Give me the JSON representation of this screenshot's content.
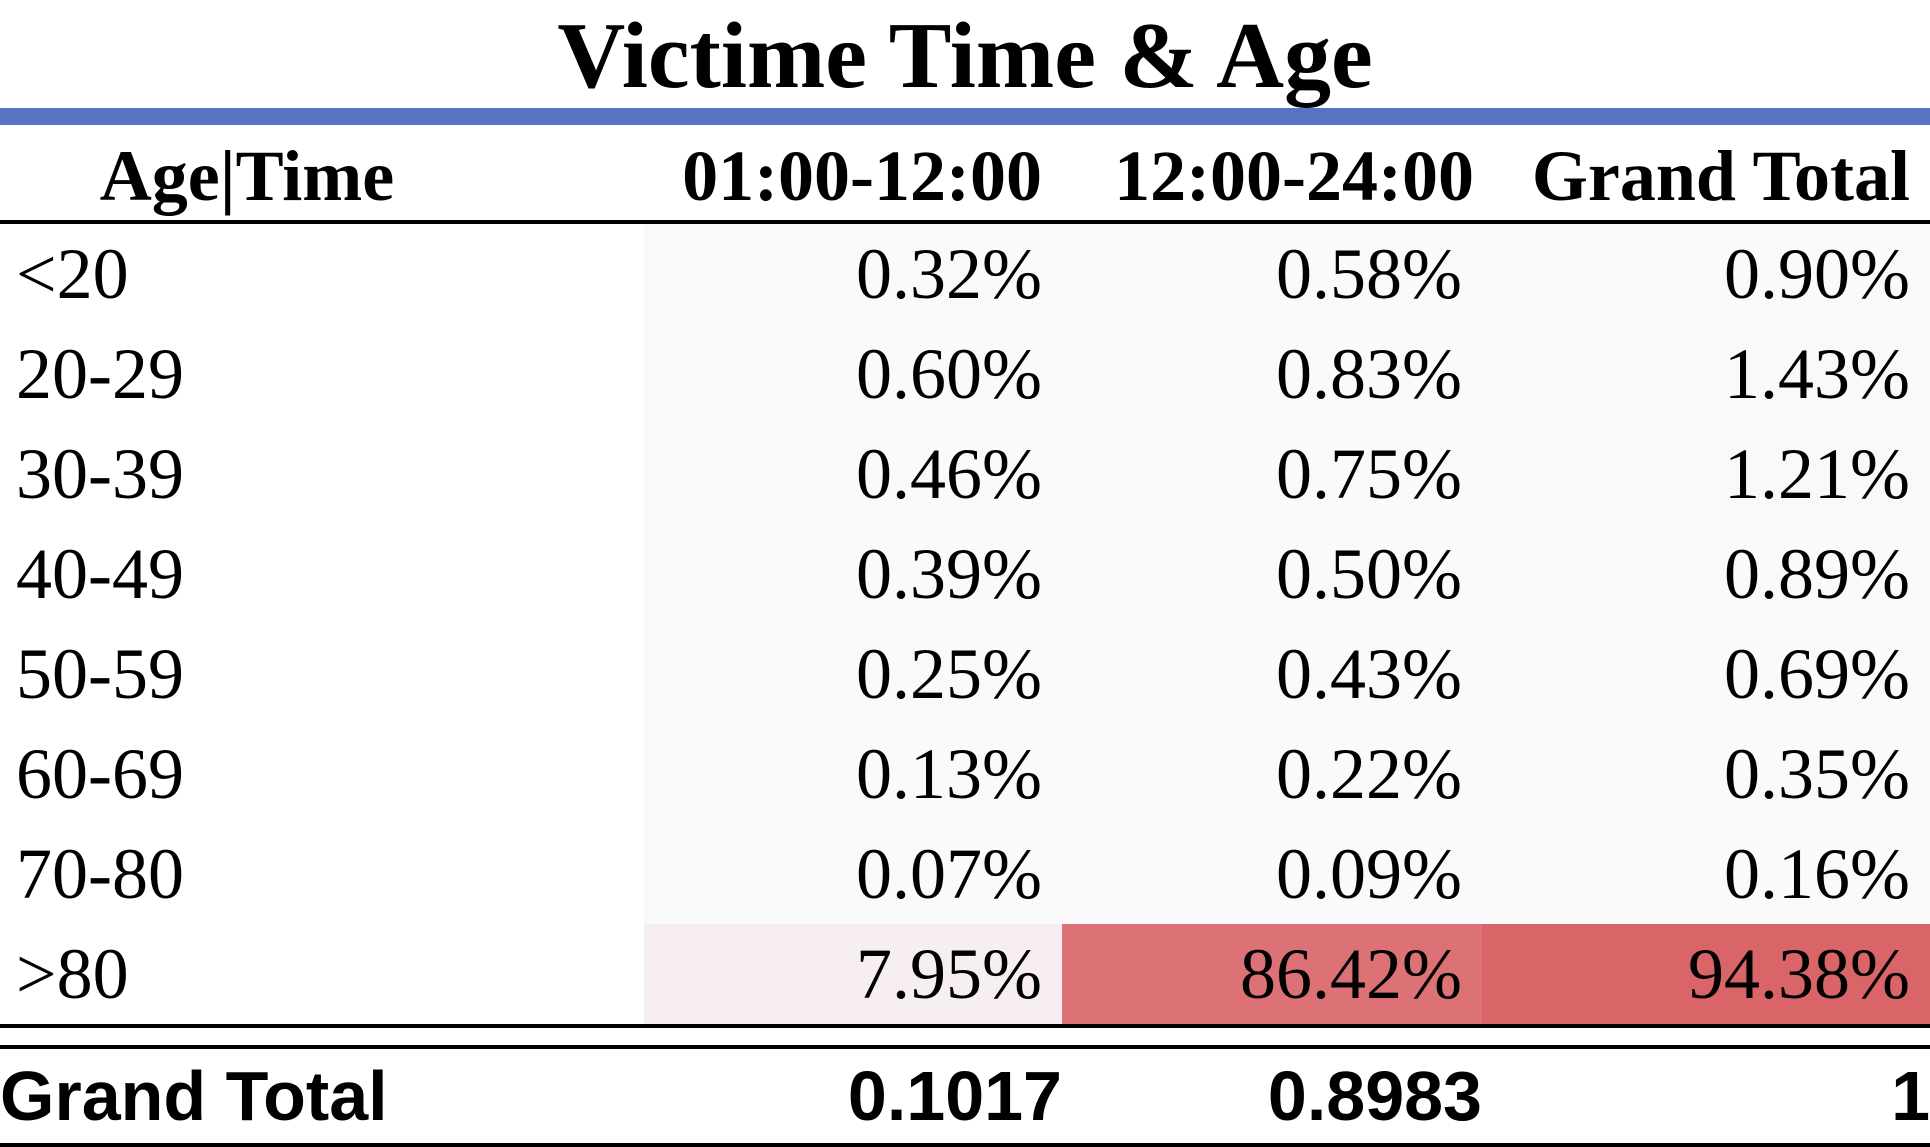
{
  "title": "Victime Time & Age",
  "chart_data": {
    "type": "heatmap",
    "title": "Victime Time & Age",
    "corner_label": "Age|Time",
    "columns": [
      "01:00-12:00",
      "12:00-24:00",
      "Grand Total"
    ],
    "rows": [
      {
        "label": "<20",
        "values": [
          "0.32%",
          "0.58%",
          "0.90%"
        ],
        "numeric": [
          0.32,
          0.58,
          0.9
        ]
      },
      {
        "label": "20-29",
        "values": [
          "0.60%",
          "0.83%",
          "1.43%"
        ],
        "numeric": [
          0.6,
          0.83,
          1.43
        ]
      },
      {
        "label": "30-39",
        "values": [
          "0.46%",
          "0.75%",
          "1.21%"
        ],
        "numeric": [
          0.46,
          0.75,
          1.21
        ]
      },
      {
        "label": "40-49",
        "values": [
          "0.39%",
          "0.50%",
          "0.89%"
        ],
        "numeric": [
          0.39,
          0.5,
          0.89
        ]
      },
      {
        "label": "50-59",
        "values": [
          "0.25%",
          "0.43%",
          "0.69%"
        ],
        "numeric": [
          0.25,
          0.43,
          0.69
        ]
      },
      {
        "label": "60-69",
        "values": [
          "0.13%",
          "0.22%",
          "0.35%"
        ],
        "numeric": [
          0.13,
          0.22,
          0.35
        ]
      },
      {
        "label": "70-80",
        "values": [
          "0.07%",
          "0.09%",
          "0.16%"
        ],
        "numeric": [
          0.07,
          0.09,
          0.16
        ]
      },
      {
        "label": ">80",
        "values": [
          "7.95%",
          "86.42%",
          "94.38%"
        ],
        "numeric": [
          7.95,
          86.42,
          94.38
        ]
      }
    ],
    "total_row": {
      "label": "Grand Total",
      "values": [
        "0.1017",
        "0.8983",
        "1"
      ]
    },
    "color_scale": {
      "low": "#fafafd",
      "high": "#d96568"
    },
    "scale_range": [
      0.07,
      94.38
    ]
  },
  "colors": {
    "title_rule": "#5872c4",
    "heat_low": "#fafafd",
    "heat_high": "#d96568"
  }
}
